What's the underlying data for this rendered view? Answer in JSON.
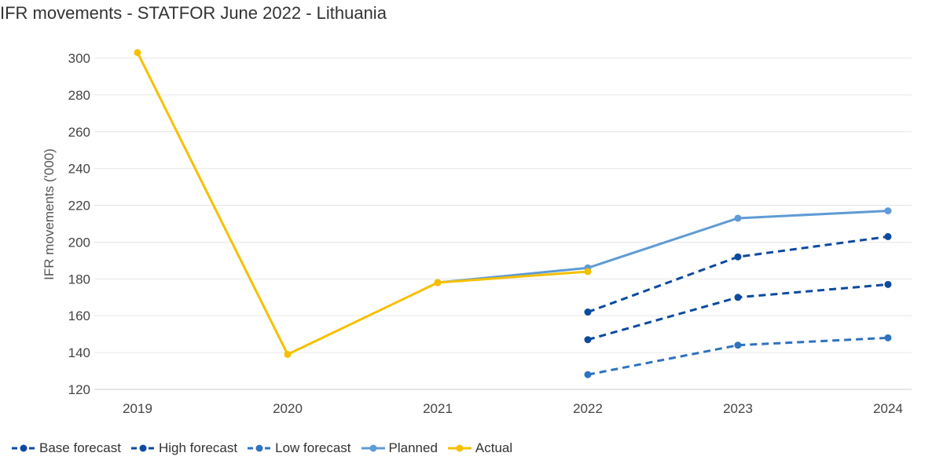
{
  "chart_data": {
    "type": "line",
    "title": "IFR movements - STATFOR June 2022 - Lithuania",
    "ylabel": "IFR movements ('000)",
    "xlabel": "",
    "x": [
      "2019",
      "2020",
      "2021",
      "2022",
      "2023",
      "2024"
    ],
    "ylim": [
      120,
      300
    ],
    "yticks": [
      120,
      140,
      160,
      180,
      200,
      220,
      240,
      260,
      280,
      300
    ],
    "grid": true,
    "legend_position": "bottom",
    "series": [
      {
        "name": "Base forecast",
        "color": "#0d4a9e",
        "dashed": true,
        "values": [
          null,
          null,
          null,
          147,
          170,
          177
        ]
      },
      {
        "name": "High forecast",
        "color": "#0d4a9e",
        "dashed": true,
        "values": [
          null,
          null,
          null,
          162,
          192,
          203
        ]
      },
      {
        "name": "Low forecast",
        "color": "#2f72bf",
        "dashed": true,
        "values": [
          null,
          null,
          null,
          128,
          144,
          148
        ]
      },
      {
        "name": "Planned",
        "color": "#5f9bd4",
        "dashed": false,
        "values": [
          null,
          null,
          178,
          186,
          213,
          217
        ]
      },
      {
        "name": "Actual",
        "color": "#f5c000",
        "dashed": false,
        "values": [
          303,
          139,
          178,
          184,
          null,
          null
        ]
      }
    ]
  }
}
